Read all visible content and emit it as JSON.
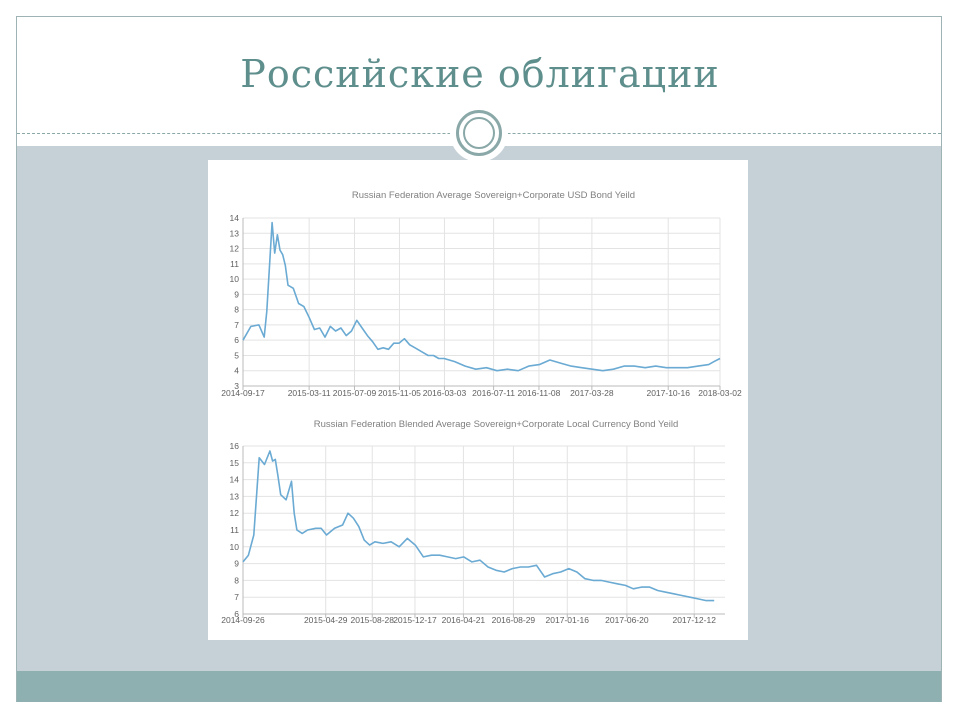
{
  "slide": {
    "title": "Российские облигации"
  },
  "chart_data": [
    {
      "type": "line",
      "title": "Russian Federation Average Sovereign+Corporate  USD Bond Yeild",
      "xlabel": "",
      "ylabel": "",
      "grid": true,
      "ylim": [
        3,
        14
      ],
      "y_ticks": [
        3,
        4,
        5,
        6,
        7,
        8,
        9,
        10,
        11,
        12,
        13,
        14
      ],
      "x_ticks": [
        "2014-09-17",
        "2015-03-11",
        "2015-07-09",
        "2015-11-05",
        "2016-03-03",
        "2016-07-11",
        "2016-11-08",
        "2017-03-28",
        "2017-10-16",
        "2018-03-02"
      ],
      "series": [
        {
          "color": "#6aaad3",
          "x": [
            "2014-09-17",
            "2014-10-08",
            "2014-10-29",
            "2014-11-12",
            "2014-11-19",
            "2014-12-03",
            "2014-12-10",
            "2014-12-17",
            "2014-12-24",
            "2014-12-31",
            "2015-01-07",
            "2015-01-14",
            "2015-01-28",
            "2015-02-11",
            "2015-02-25",
            "2015-03-11",
            "2015-03-25",
            "2015-04-08",
            "2015-04-22",
            "2015-05-06",
            "2015-05-20",
            "2015-06-03",
            "2015-06-17",
            "2015-07-01",
            "2015-07-15",
            "2015-07-29",
            "2015-08-12",
            "2015-08-26",
            "2015-09-09",
            "2015-09-23",
            "2015-10-07",
            "2015-10-21",
            "2015-11-04",
            "2015-11-18",
            "2015-12-02",
            "2015-12-16",
            "2016-01-06",
            "2016-01-20",
            "2016-02-03",
            "2016-02-17",
            "2016-03-02",
            "2016-03-30",
            "2016-04-27",
            "2016-05-25",
            "2016-06-22",
            "2016-07-20",
            "2016-08-17",
            "2016-09-14",
            "2016-10-12",
            "2016-11-09",
            "2016-12-07",
            "2017-01-04",
            "2017-02-01",
            "2017-03-01",
            "2017-03-29",
            "2017-04-26",
            "2017-05-24",
            "2017-06-21",
            "2017-07-19",
            "2017-08-16",
            "2017-09-13",
            "2017-10-11",
            "2017-11-08",
            "2017-12-06",
            "2018-01-03",
            "2018-01-31",
            "2018-02-14",
            "2018-03-02"
          ],
          "values": [
            6.0,
            6.9,
            7.0,
            6.2,
            7.9,
            13.7,
            11.7,
            12.9,
            11.9,
            11.6,
            10.9,
            9.6,
            9.4,
            8.4,
            8.2,
            7.5,
            6.7,
            6.8,
            6.2,
            6.9,
            6.6,
            6.8,
            6.3,
            6.6,
            7.3,
            6.8,
            6.3,
            5.9,
            5.4,
            5.5,
            5.4,
            5.8,
            5.8,
            6.1,
            5.7,
            5.5,
            5.2,
            5.0,
            5.0,
            4.8,
            4.8,
            4.6,
            4.3,
            4.1,
            4.2,
            4.0,
            4.1,
            4.0,
            4.3,
            4.4,
            4.7,
            4.5,
            4.3,
            4.2,
            4.1,
            4.0,
            4.1,
            4.3,
            4.3,
            4.2,
            4.3,
            4.2,
            4.2,
            4.2,
            4.3,
            4.4,
            4.6,
            4.8
          ]
        }
      ]
    },
    {
      "type": "line",
      "title": "Russian Federation Blended Average Sovereign+Corporate   Local Currency Bond Yeild",
      "xlabel": "",
      "ylabel": "",
      "grid": true,
      "ylim": [
        6,
        16
      ],
      "y_ticks": [
        6,
        7,
        8,
        9,
        10,
        11,
        12,
        13,
        14,
        15,
        16
      ],
      "x_ticks": [
        "2014-09-26",
        "2015-04-29",
        "2015-08-28",
        "2015-12-17",
        "2016-04-21",
        "2016-08-29",
        "2017-01-16",
        "2017-06-20",
        "2017-12-12"
      ],
      "series": [
        {
          "color": "#6aaad3",
          "x": [
            "2014-09-26",
            "2014-10-10",
            "2014-10-24",
            "2014-11-07",
            "2014-11-21",
            "2014-12-05",
            "2014-12-12",
            "2014-12-19",
            "2014-12-26",
            "2015-01-02",
            "2015-01-16",
            "2015-01-30",
            "2015-02-06",
            "2015-02-13",
            "2015-02-27",
            "2015-03-13",
            "2015-04-03",
            "2015-04-17",
            "2015-05-01",
            "2015-05-22",
            "2015-06-12",
            "2015-06-26",
            "2015-07-10",
            "2015-07-24",
            "2015-08-07",
            "2015-08-21",
            "2015-09-04",
            "2015-09-25",
            "2015-10-16",
            "2015-11-06",
            "2015-11-27",
            "2015-12-18",
            "2016-01-08",
            "2016-01-29",
            "2016-02-19",
            "2016-03-11",
            "2016-04-01",
            "2016-04-22",
            "2016-05-13",
            "2016-06-03",
            "2016-06-24",
            "2016-07-15",
            "2016-08-05",
            "2016-08-26",
            "2016-09-16",
            "2016-10-07",
            "2016-10-28",
            "2016-11-18",
            "2016-12-09",
            "2016-12-30",
            "2017-01-20",
            "2017-02-10",
            "2017-03-03",
            "2017-03-24",
            "2017-04-14",
            "2017-05-05",
            "2017-05-26",
            "2017-06-16",
            "2017-07-07",
            "2017-07-28",
            "2017-08-18",
            "2017-09-08",
            "2017-09-29",
            "2017-10-20",
            "2017-11-10",
            "2017-12-01",
            "2017-12-22",
            "2018-01-12",
            "2018-02-02"
          ],
          "values": [
            9.1,
            9.5,
            10.7,
            15.3,
            14.9,
            15.7,
            15.1,
            15.2,
            14.2,
            13.1,
            12.8,
            13.9,
            12.0,
            11.0,
            10.8,
            11.0,
            11.1,
            11.1,
            10.7,
            11.1,
            11.3,
            12.0,
            11.7,
            11.2,
            10.4,
            10.1,
            10.3,
            10.2,
            10.3,
            10.0,
            10.5,
            10.1,
            9.4,
            9.5,
            9.5,
            9.4,
            9.3,
            9.4,
            9.1,
            9.2,
            8.8,
            8.6,
            8.5,
            8.7,
            8.8,
            8.8,
            8.9,
            8.2,
            8.4,
            8.5,
            8.7,
            8.5,
            8.1,
            8.0,
            8.0,
            7.9,
            7.8,
            7.7,
            7.5,
            7.6,
            7.6,
            7.4,
            7.3,
            7.2,
            7.1,
            7.0,
            6.9,
            6.8,
            6.8
          ]
        }
      ]
    }
  ]
}
